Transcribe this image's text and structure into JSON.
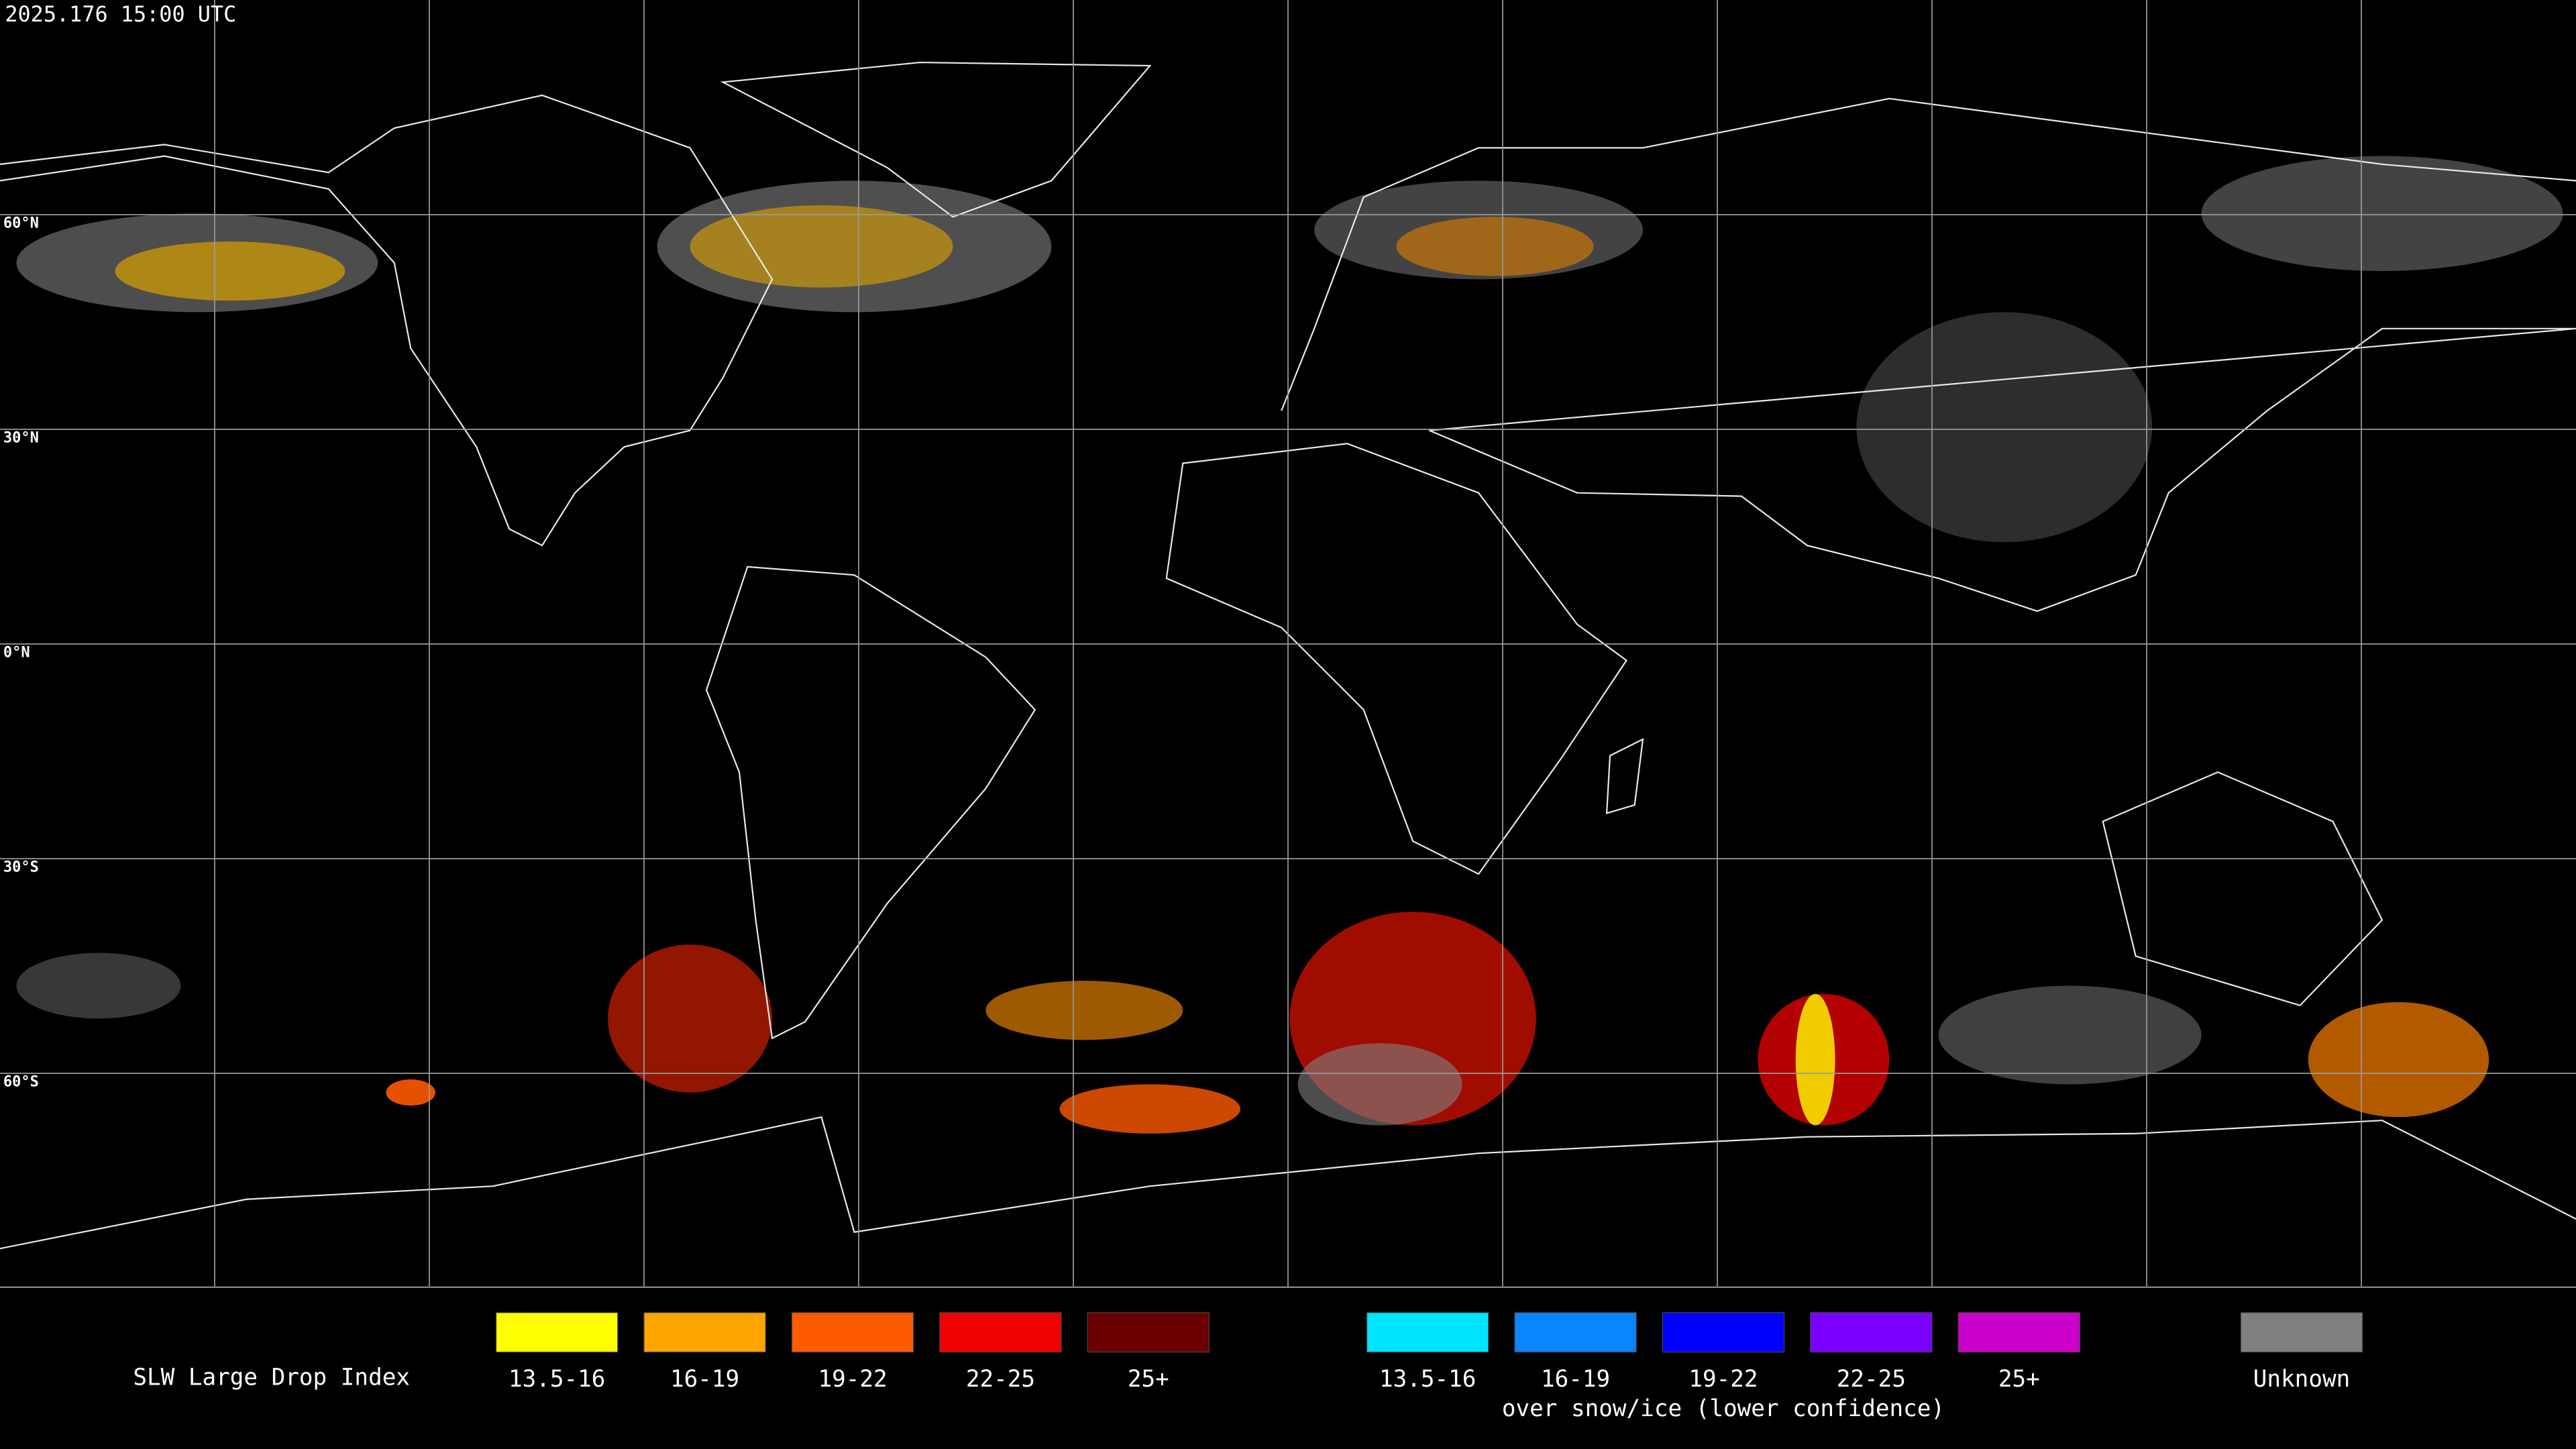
{
  "timestamp": "2025.176 15:00 UTC",
  "latitude_labels": [
    "60°N",
    "30°N",
    "0°N",
    "30°S",
    "60°S"
  ],
  "legend": {
    "title": "SLW Large Drop Index",
    "groups": [
      {
        "items": [
          {
            "label": "13.5-16",
            "color": "#ffff00"
          },
          {
            "label": "16-19",
            "color": "#ffa500"
          },
          {
            "label": "19-22",
            "color": "#ff5a00"
          },
          {
            "label": "22-25",
            "color": "#f00000"
          },
          {
            "label": "25+",
            "color": "#6a0000"
          }
        ]
      },
      {
        "items": [
          {
            "label": "13.5-16",
            "color": "#00e5ff"
          },
          {
            "label": "16-19",
            "color": "#0a84ff"
          },
          {
            "label": "19-22",
            "color": "#0000ff"
          },
          {
            "label": "22-25",
            "color": "#7a00ff"
          },
          {
            "label": "25+",
            "color": "#cc00cc"
          }
        ],
        "caption": "over snow/ice (lower confidence)"
      },
      {
        "items": [
          {
            "label": "Unknown",
            "color": "#808080"
          }
        ]
      }
    ]
  }
}
